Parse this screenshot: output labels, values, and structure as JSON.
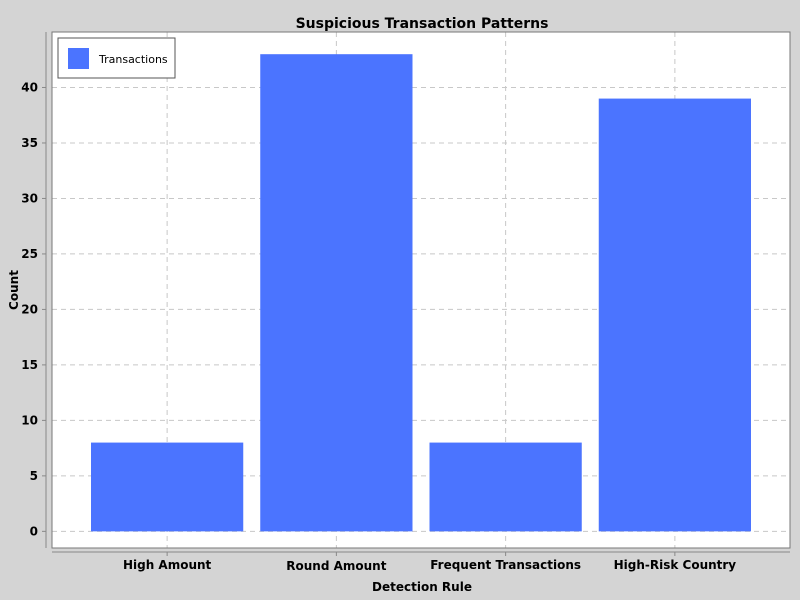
{
  "chart_data": {
    "type": "bar",
    "title": "Suspicious Transaction Patterns",
    "xlabel": "Detection Rule",
    "ylabel": "Count",
    "categories": [
      "High Amount",
      "Round Amount",
      "Frequent Transactions",
      "High-Risk Country"
    ],
    "series": [
      {
        "name": "Transactions",
        "values": [
          8,
          43,
          8,
          39
        ],
        "color": "#4b74ff"
      }
    ],
    "ylim": [
      -1.5,
      45
    ],
    "yticks": [
      "0",
      "5",
      "10",
      "15",
      "20",
      "25",
      "30",
      "35",
      "40"
    ],
    "grid": true,
    "legend_position": "top-left"
  },
  "colors": {
    "background": "#d4d4d4",
    "plot_background": "#ffffff",
    "grid": "#c8c8c8",
    "bar": "#4b74ff"
  }
}
